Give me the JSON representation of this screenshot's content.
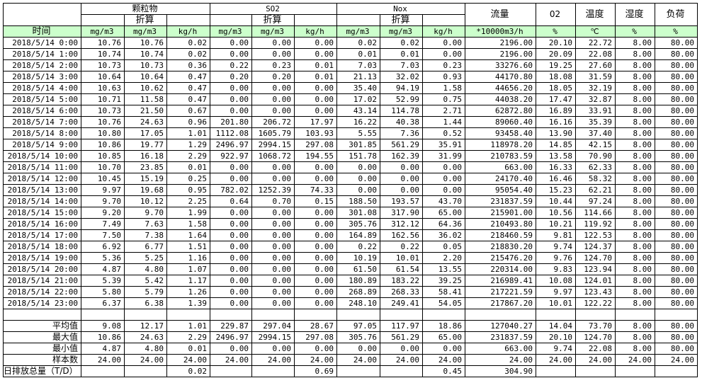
{
  "header": {
    "groups": [
      "颗粒物",
      "SO2",
      "Nox"
    ],
    "converted": "折算",
    "flow": "流量",
    "o2": "02",
    "temp": "温度",
    "humidity": "湿度",
    "load": "负荷",
    "time": "时间",
    "units": [
      "mg/m3",
      "mg/m3",
      "kg/h",
      "mg/m3",
      "mg/m3",
      "kg/h",
      "mg/m3",
      "mg/m3",
      "kg/h",
      "*10000m3/h",
      "%",
      "℃",
      "%",
      "%"
    ]
  },
  "colors": {
    "unit_row_bg": "#ccffcc",
    "border": "#000000"
  },
  "rows": [
    {
      "time": "2018/5/14 0:00",
      "values": [
        "10.76",
        "10.76",
        "0.02",
        "0.00",
        "0.00",
        "0.00",
        "0.02",
        "0.02",
        "0.00",
        "2196.00",
        "20.10",
        "22.72",
        "8.00",
        "80.00"
      ]
    },
    {
      "time": "2018/5/14 1:00",
      "values": [
        "10.74",
        "10.74",
        "0.02",
        "0.00",
        "0.00",
        "0.00",
        "0.01",
        "0.01",
        "0.00",
        "2196.00",
        "20.09",
        "22.08",
        "8.00",
        "80.00"
      ]
    },
    {
      "time": "2018/5/14 2:00",
      "values": [
        "10.73",
        "10.73",
        "0.36",
        "0.22",
        "0.23",
        "0.01",
        "7.03",
        "7.03",
        "0.23",
        "33276.60",
        "19.25",
        "27.60",
        "8.00",
        "80.00"
      ]
    },
    {
      "time": "2018/5/14 3:00",
      "values": [
        "10.64",
        "10.64",
        "0.47",
        "0.20",
        "0.20",
        "0.01",
        "21.13",
        "32.02",
        "0.93",
        "44170.80",
        "18.08",
        "31.59",
        "8.00",
        "80.00"
      ]
    },
    {
      "time": "2018/5/14 4:00",
      "values": [
        "10.63",
        "10.62",
        "0.47",
        "0.00",
        "0.00",
        "0.00",
        "35.40",
        "94.19",
        "1.58",
        "44656.20",
        "18.05",
        "32.19",
        "8.00",
        "80.00"
      ]
    },
    {
      "time": "2018/5/14 5:00",
      "values": [
        "10.71",
        "11.58",
        "0.47",
        "0.00",
        "0.00",
        "0.00",
        "17.02",
        "52.99",
        "0.75",
        "44038.20",
        "17.47",
        "32.87",
        "8.00",
        "80.00"
      ]
    },
    {
      "time": "2018/5/14 6:00",
      "values": [
        "10.73",
        "21.50",
        "0.67",
        "0.00",
        "0.00",
        "0.00",
        "43.14",
        "114.78",
        "2.71",
        "62872.80",
        "16.89",
        "33.91",
        "8.00",
        "80.00"
      ]
    },
    {
      "time": "2018/5/14 7:00",
      "values": [
        "10.76",
        "24.63",
        "0.96",
        "201.80",
        "206.72",
        "17.97",
        "16.22",
        "40.38",
        "1.44",
        "89060.40",
        "16.16",
        "35.39",
        "8.00",
        "80.00"
      ]
    },
    {
      "time": "2018/5/14 8:00",
      "values": [
        "10.80",
        "17.05",
        "1.01",
        "1112.08",
        "1605.79",
        "103.93",
        "5.55",
        "7.36",
        "0.52",
        "93458.40",
        "13.90",
        "37.40",
        "8.00",
        "80.00"
      ]
    },
    {
      "time": "2018/5/14 9:00",
      "values": [
        "10.86",
        "19.77",
        "1.29",
        "2496.97",
        "2994.15",
        "297.08",
        "301.85",
        "561.29",
        "35.91",
        "118978.20",
        "14.85",
        "42.15",
        "8.00",
        "80.00"
      ]
    },
    {
      "time": "2018/5/14 10:00",
      "values": [
        "10.85",
        "16.18",
        "2.29",
        "922.97",
        "1068.72",
        "194.55",
        "151.78",
        "162.39",
        "31.99",
        "210783.59",
        "13.58",
        "70.90",
        "8.00",
        "80.00"
      ]
    },
    {
      "time": "2018/5/14 11:00",
      "values": [
        "10.70",
        "23.85",
        "0.01",
        "0.00",
        "0.00",
        "0.00",
        "0.00",
        "0.00",
        "0.00",
        "663.00",
        "16.33",
        "62.33",
        "8.00",
        "80.00"
      ]
    },
    {
      "time": "2018/5/14 12:00",
      "values": [
        "10.45",
        "15.19",
        "0.25",
        "0.00",
        "0.00",
        "0.00",
        "0.00",
        "0.00",
        "0.00",
        "24170.40",
        "16.46",
        "58.32",
        "8.00",
        "80.00"
      ]
    },
    {
      "time": "2018/5/14 13:00",
      "values": [
        "9.97",
        "19.68",
        "0.95",
        "782.02",
        "1252.39",
        "74.33",
        "0.00",
        "0.00",
        "0.00",
        "95054.40",
        "15.23",
        "62.21",
        "8.00",
        "80.00"
      ]
    },
    {
      "time": "2018/5/14 14:00",
      "values": [
        "9.70",
        "10.12",
        "2.25",
        "0.64",
        "0.70",
        "0.15",
        "188.50",
        "193.57",
        "43.70",
        "231837.59",
        "10.44",
        "97.24",
        "8.00",
        "80.00"
      ]
    },
    {
      "time": "2018/5/14 15:00",
      "values": [
        "9.20",
        "9.70",
        "1.99",
        "0.00",
        "0.00",
        "0.00",
        "301.08",
        "317.90",
        "65.00",
        "215901.00",
        "10.56",
        "114.66",
        "8.00",
        "80.00"
      ]
    },
    {
      "time": "2018/5/14 16:00",
      "values": [
        "7.49",
        "7.63",
        "1.58",
        "0.00",
        "0.00",
        "0.00",
        "305.76",
        "312.12",
        "64.36",
        "210493.80",
        "10.21",
        "119.92",
        "8.00",
        "80.00"
      ]
    },
    {
      "time": "2018/5/14 17:00",
      "values": [
        "7.50",
        "7.38",
        "1.64",
        "0.00",
        "0.00",
        "0.00",
        "164.89",
        "162.56",
        "36.02",
        "218460.59",
        "9.81",
        "122.53",
        "8.00",
        "80.00"
      ]
    },
    {
      "time": "2018/5/14 18:00",
      "values": [
        "6.92",
        "6.77",
        "1.51",
        "0.00",
        "0.00",
        "0.00",
        "0.22",
        "0.22",
        "0.05",
        "218830.20",
        "9.74",
        "124.37",
        "8.00",
        "80.00"
      ]
    },
    {
      "time": "2018/5/14 19:00",
      "values": [
        "5.36",
        "5.25",
        "1.16",
        "0.00",
        "0.00",
        "0.00",
        "10.19",
        "10.01",
        "2.20",
        "215476.20",
        "9.76",
        "124.70",
        "8.00",
        "80.00"
      ]
    },
    {
      "time": "2018/5/14 20:00",
      "values": [
        "4.87",
        "4.80",
        "1.07",
        "0.00",
        "0.00",
        "0.00",
        "61.50",
        "61.54",
        "13.55",
        "220314.00",
        "9.83",
        "123.94",
        "8.00",
        "80.00"
      ]
    },
    {
      "time": "2018/5/14 21:00",
      "values": [
        "5.39",
        "5.42",
        "1.17",
        "0.00",
        "0.00",
        "0.00",
        "180.89",
        "183.22",
        "39.25",
        "216989.41",
        "10.08",
        "124.01",
        "8.00",
        "80.00"
      ]
    },
    {
      "time": "2018/5/14 22:00",
      "values": [
        "5.80",
        "5.79",
        "1.26",
        "0.00",
        "0.00",
        "0.00",
        "268.89",
        "268.33",
        "58.41",
        "217221.59",
        "9.97",
        "123.43",
        "8.00",
        "80.00"
      ]
    },
    {
      "time": "2018/5/14 23:00",
      "values": [
        "6.37",
        "6.38",
        "1.39",
        "0.00",
        "0.00",
        "0.00",
        "248.10",
        "249.41",
        "54.05",
        "217867.20",
        "10.01",
        "122.22",
        "8.00",
        "80.00"
      ]
    }
  ],
  "summary": [
    {
      "label": "平均值",
      "values": [
        "9.08",
        "12.17",
        "1.01",
        "229.87",
        "297.04",
        "28.67",
        "97.05",
        "117.97",
        "18.86",
        "127040.27",
        "14.04",
        "73.70",
        "8.00",
        "80.00"
      ]
    },
    {
      "label": "最大值",
      "values": [
        "10.86",
        "24.63",
        "2.29",
        "2496.97",
        "2994.15",
        "297.08",
        "305.76",
        "561.29",
        "65.00",
        "231837.59",
        "20.10",
        "124.70",
        "8.00",
        "80.00"
      ]
    },
    {
      "label": "最小值",
      "values": [
        "4.87",
        "4.80",
        "0.01",
        "0.00",
        "0.00",
        "0.00",
        "0.00",
        "0.00",
        "0.00",
        "663.00",
        "9.74",
        "22.08",
        "8.00",
        "80.00"
      ]
    },
    {
      "label": "样本数",
      "values": [
        "24.00",
        "24.00",
        "24.00",
        "24.00",
        "24.00",
        "24.00",
        "24.00",
        "24.00",
        "24.00",
        "24.00",
        "24.00",
        "24.00",
        "24.00",
        "24.00"
      ]
    }
  ],
  "total": {
    "label": "日排放总量（T/D）",
    "values": [
      "",
      "",
      "0.02",
      "",
      "",
      "0.69",
      "",
      "",
      "0.45",
      "304.90",
      "",
      "",
      "",
      ""
    ]
  }
}
